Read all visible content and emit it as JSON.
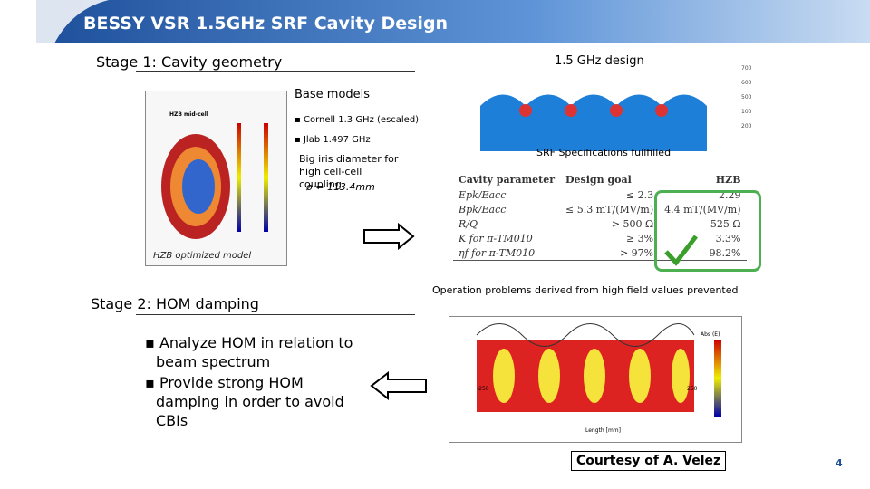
{
  "header": {
    "title": "BESSY VSR 1.5GHz SRF Cavity Design"
  },
  "stage1": {
    "heading": "Stage 1: Cavity geometry",
    "base_models": "Base models",
    "bullets": [
      "Cornell 1.3 GHz (escaled)",
      "Jlab 1.497 GHz"
    ],
    "iris_note": "Big iris diameter for high cell-cell coupling",
    "iris_value": "ø = 113.4mm",
    "model_caption": "HZB optimized model",
    "figure_label": "HZB mid-cell"
  },
  "design": {
    "caption": "1.5 GHz design",
    "colorbar": [
      "700",
      "600",
      "500",
      "100",
      "200"
    ]
  },
  "specs": {
    "caption": "SRF Specifications fullfilled",
    "table": {
      "header": [
        "Cavity parameter",
        "Design goal",
        "HZB"
      ],
      "rows": [
        [
          "Epk/Eacc",
          "≤ 2.3",
          "2.29"
        ],
        [
          "Bpk/Eacc",
          "≤ 5.3 mT/(MV/m)",
          "4.4 mT/(MV/m)"
        ],
        [
          "R/Q",
          "> 500 Ω",
          "525 Ω"
        ],
        [
          "K for π-TM010",
          "≥ 3%",
          "3.3%"
        ],
        [
          "ηf for π-TM010",
          "> 97%",
          "98.2%"
        ]
      ]
    },
    "note": "Operation problems derived from high field values prevented"
  },
  "stage2": {
    "heading": "Stage 2: HOM damping",
    "bullets": [
      "Analyze HOM in relation to beam spectrum",
      "Provide strong HOM damping in order to avoid CBIs"
    ],
    "figure_legend": "Abs (E)",
    "x_axis": "Length [mm]",
    "x_ticks": [
      "-250",
      "250"
    ]
  },
  "footer": {
    "credit": "Courtesy of A. Velez",
    "page": "4"
  }
}
